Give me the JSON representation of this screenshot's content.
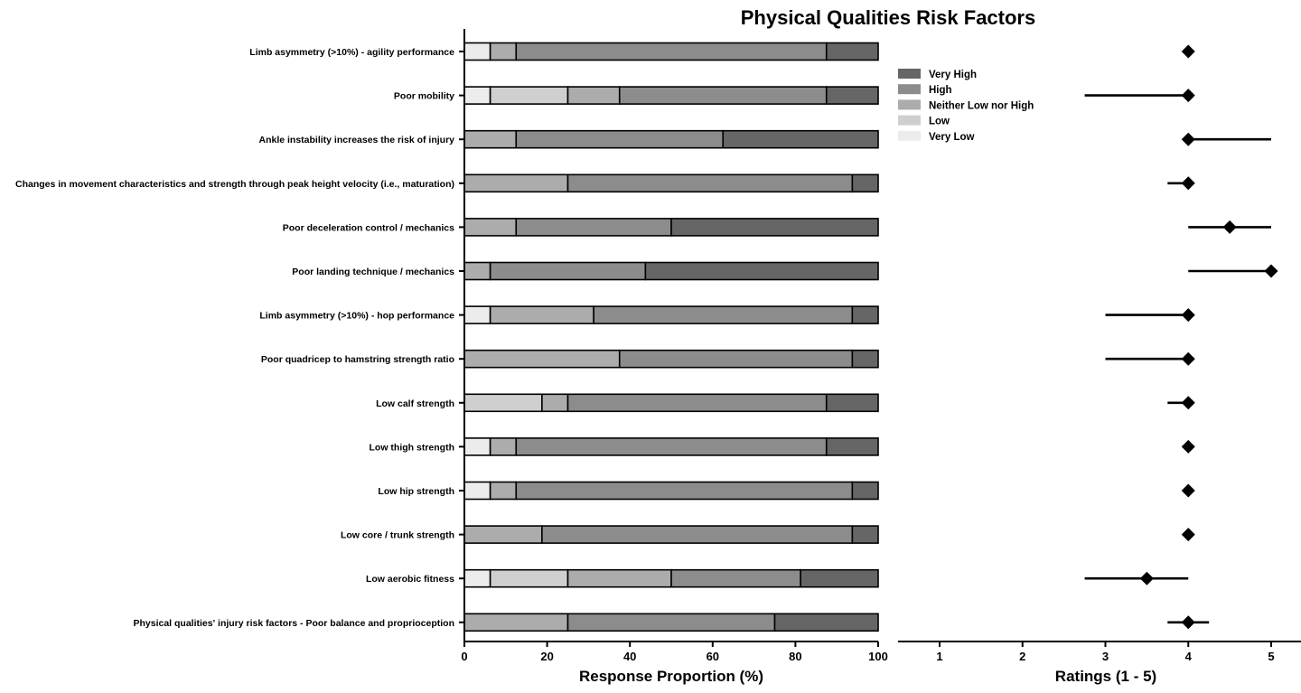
{
  "chart_data": [
    {
      "type": "stacked-bar-horizontal",
      "title": "Physical Qualities Risk Factors",
      "xlabel": "Response Proportion (%)",
      "xlim": [
        0,
        100
      ],
      "xticks": [
        "0",
        "20",
        "40",
        "60",
        "80",
        "100"
      ],
      "series_order": [
        "Very Low",
        "Low",
        "Neither Low nor High",
        "High",
        "Very High"
      ],
      "legend": {
        "placement": "top-right",
        "entries": [
          {
            "name": "Very High",
            "color": "#666666"
          },
          {
            "name": "High",
            "color": "#8c8c8c"
          },
          {
            "name": "Neither Low nor High",
            "color": "#acacac"
          },
          {
            "name": "Low",
            "color": "#cfcfcf"
          },
          {
            "name": "Very Low",
            "color": "#ececec"
          }
        ]
      },
      "categories": [
        "Limb asymmetry (>10%) - agility performance",
        "Poor mobility",
        "Ankle instability increases the risk of injury",
        "Changes in movement characteristics and strength through peak height velocity (i.e., maturation)",
        "Poor deceleration control / mechanics",
        "Poor landing technique / mechanics",
        "Limb asymmetry (>10%) - hop performance",
        "Poor quadricep to hamstring strength ratio",
        "Low calf strength",
        "Low thigh strength",
        "Low hip strength",
        "Low core / trunk strength",
        "Low aerobic fitness",
        "Physical qualities' injury risk factors - Poor balance and proprioception"
      ],
      "series": [
        {
          "name": "Very Low",
          "values": [
            6.25,
            6.25,
            0,
            0,
            0,
            0,
            6.25,
            0,
            0,
            6.25,
            6.25,
            0,
            6.25,
            0
          ]
        },
        {
          "name": "Low",
          "values": [
            0,
            18.75,
            0,
            0,
            0,
            0,
            0,
            0,
            18.75,
            0,
            0,
            0,
            18.75,
            0
          ]
        },
        {
          "name": "Neither Low nor High",
          "values": [
            6.25,
            12.5,
            12.5,
            25,
            12.5,
            6.25,
            25,
            37.5,
            6.25,
            6.25,
            6.25,
            18.75,
            25,
            25
          ]
        },
        {
          "name": "High",
          "values": [
            75,
            50,
            50,
            68.75,
            37.5,
            37.5,
            62.5,
            56.25,
            62.5,
            75,
            81.25,
            75,
            31.25,
            50
          ]
        },
        {
          "name": "Very High",
          "values": [
            12.5,
            12.5,
            37.5,
            6.25,
            50,
            56.25,
            6.25,
            6.25,
            12.5,
            12.5,
            6.25,
            6.25,
            18.75,
            25
          ]
        }
      ]
    },
    {
      "type": "dot-interval",
      "xlabel": "Ratings (1 - 5)",
      "xlim": [
        0.5,
        5.35
      ],
      "xticks": [
        "1",
        "2",
        "3",
        "4",
        "5"
      ],
      "marker_color": "#000000",
      "points": [
        {
          "median": 4,
          "low": 4,
          "high": 4
        },
        {
          "median": 4,
          "low": 2.75,
          "high": 4
        },
        {
          "median": 4,
          "low": 4,
          "high": 5
        },
        {
          "median": 4,
          "low": 3.75,
          "high": 4
        },
        {
          "median": 4.5,
          "low": 4,
          "high": 5
        },
        {
          "median": 5,
          "low": 4,
          "high": 5
        },
        {
          "median": 4,
          "low": 3,
          "high": 4
        },
        {
          "median": 4,
          "low": 3,
          "high": 4
        },
        {
          "median": 4,
          "low": 3.75,
          "high": 4
        },
        {
          "median": 4,
          "low": 4,
          "high": 4
        },
        {
          "median": 4,
          "low": 4,
          "high": 4
        },
        {
          "median": 4,
          "low": 4,
          "high": 4
        },
        {
          "median": 3.5,
          "low": 2.75,
          "high": 4
        },
        {
          "median": 4,
          "low": 3.75,
          "high": 4.25
        }
      ]
    }
  ]
}
